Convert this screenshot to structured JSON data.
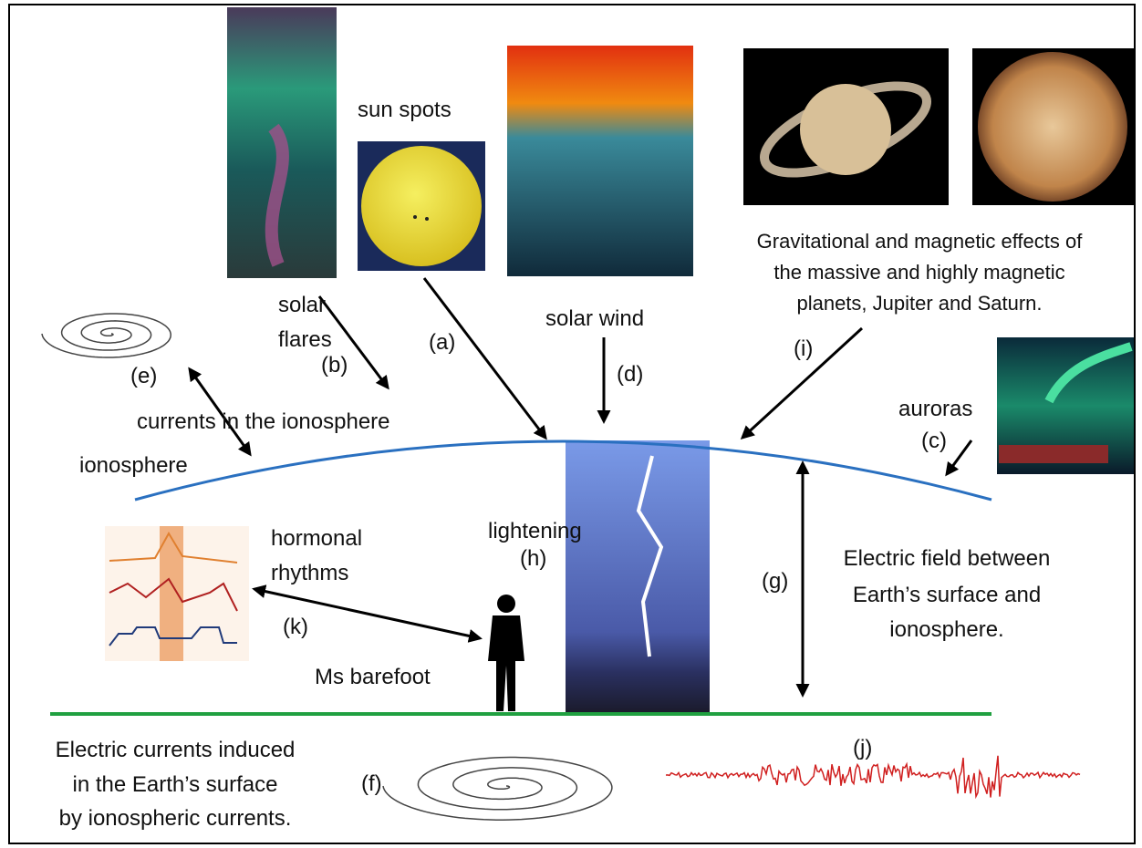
{
  "labels": {
    "sun_spots": "sun spots",
    "solar_flares": [
      "solar",
      "flares"
    ],
    "solar_wind": "solar wind",
    "planets": [
      "Gravitational and magnetic effects of",
      "the massive and highly magnetic",
      "planets, Jupiter and Saturn."
    ],
    "auroras": "auroras",
    "currents_ionosphere": "currents in the ionosphere",
    "ionosphere": "ionosphere",
    "lightening": "lightening",
    "hormonal": [
      "hormonal",
      "rhythms"
    ],
    "electric_field": [
      "Electric field between",
      "Earth’s surface and",
      "ionosphere."
    ],
    "barefoot": "Ms barefoot",
    "induced": [
      "Electric currents  induced",
      "in the Earth’s surface",
      "by ionospheric currents."
    ]
  },
  "markers": {
    "a": "(a)",
    "b": "(b)",
    "c": "(c)",
    "d": "(d)",
    "e": "(e)",
    "f": "(f)",
    "g": "(g)",
    "h": "(h)",
    "i": "(i)",
    "j": "(j)",
    "k": "(k)"
  }
}
